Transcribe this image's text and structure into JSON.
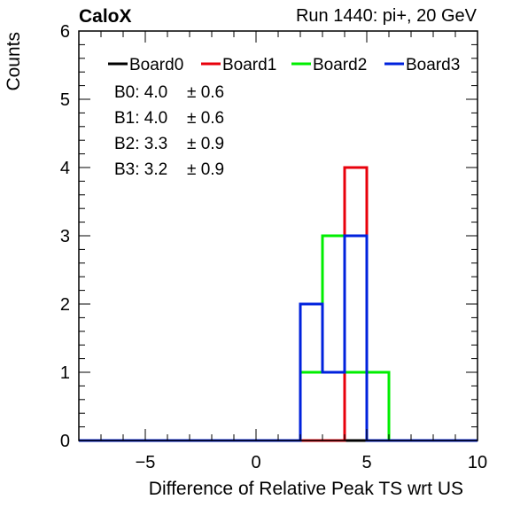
{
  "header": {
    "experiment": "CaloX",
    "run": "Run 1440: pi+, 20 GeV"
  },
  "chart_data": {
    "type": "histogram",
    "xlabel": "Difference of Relative Peak TS wrt US",
    "ylabel": "Counts",
    "xlim": [
      -8,
      10
    ],
    "ylim": [
      0,
      6
    ],
    "bin_width": 1,
    "x_ticks": [
      -5,
      0,
      5,
      10
    ],
    "y_ticks": [
      0,
      1,
      2,
      3,
      4,
      5,
      6
    ],
    "legend_position": "top",
    "series": [
      {
        "name": "Board0",
        "color": "#000000",
        "bins": []
      },
      {
        "name": "Board1",
        "color": "#e8000b",
        "bins": [
          {
            "x": 4,
            "count": 4
          }
        ]
      },
      {
        "name": "Board2",
        "color": "#00ee00",
        "bins": [
          {
            "x": 2,
            "count": 1
          },
          {
            "x": 3,
            "count": 3
          },
          {
            "x": 4,
            "count": 1
          },
          {
            "x": 5,
            "count": 1
          }
        ]
      },
      {
        "name": "Board3",
        "color": "#0022dd",
        "bins": [
          {
            "x": 2,
            "count": 2
          },
          {
            "x": 3,
            "count": 1
          },
          {
            "x": 4,
            "count": 3
          }
        ]
      }
    ],
    "stats": [
      {
        "label": "B0: 4.0",
        "pm": "± 0.6"
      },
      {
        "label": "B1: 4.0",
        "pm": "± 0.6"
      },
      {
        "label": "B2: 3.3",
        "pm": "± 0.9"
      },
      {
        "label": "B3: 3.2",
        "pm": "± 0.9"
      }
    ]
  }
}
